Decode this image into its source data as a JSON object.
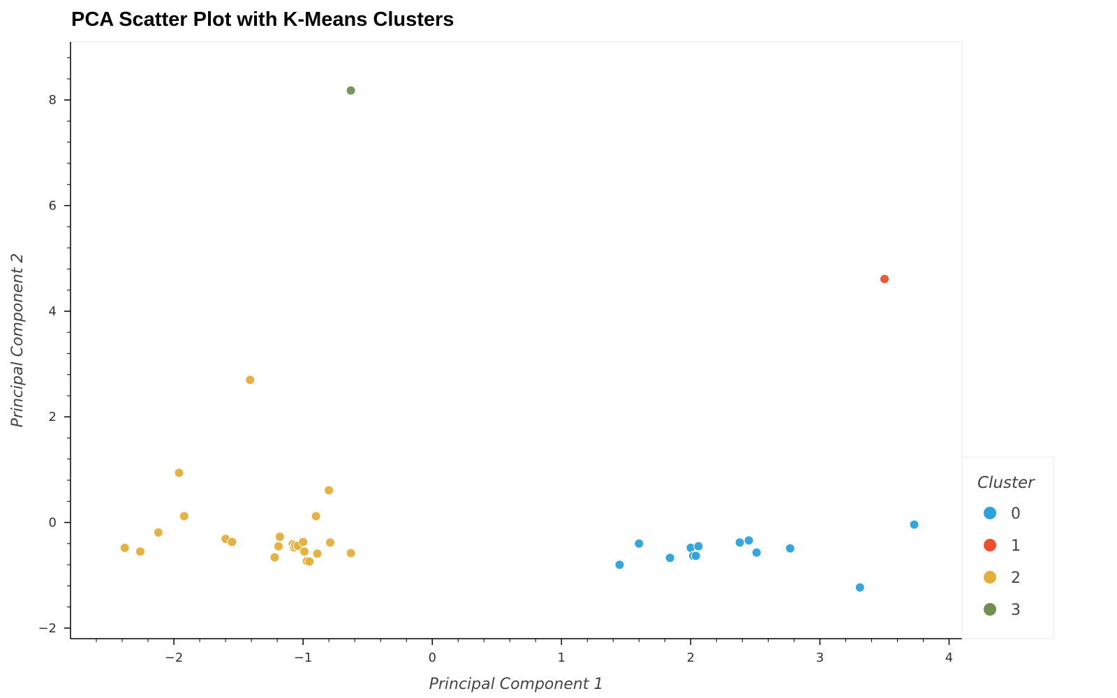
{
  "chart_data": {
    "type": "scatter",
    "title": "PCA Scatter Plot with K-Means Clusters",
    "xlabel": "Principal Component 1",
    "ylabel": "Principal Component 2",
    "xlim": [
      -2.8,
      4.1
    ],
    "ylim": [
      -2.2,
      9.1
    ],
    "xticks": [
      -2,
      -1,
      0,
      1,
      2,
      3,
      4
    ],
    "yticks": [
      -2,
      0,
      2,
      4,
      6,
      8
    ],
    "xtick_labels": [
      "−2",
      "−1",
      "0",
      "1",
      "2",
      "3",
      "4"
    ],
    "ytick_labels": [
      "−2",
      "0",
      "2",
      "4",
      "6",
      "8"
    ],
    "grid": false,
    "legend": {
      "title": "Cluster",
      "placement": "right"
    },
    "series": [
      {
        "name": "0",
        "color": "#2ca1db",
        "x": [
          1.45,
          1.6,
          1.84,
          2.0,
          2.02,
          2.04,
          2.06,
          2.38,
          2.45,
          2.51,
          2.77,
          3.31,
          3.73
        ],
        "y": [
          -0.8,
          -0.4,
          -0.67,
          -0.48,
          -0.63,
          -0.63,
          -0.45,
          -0.38,
          -0.34,
          -0.57,
          -0.49,
          -1.23,
          -0.04
        ]
      },
      {
        "name": "1",
        "color": "#f24d2c",
        "x": [
          3.5
        ],
        "y": [
          4.61
        ]
      },
      {
        "name": "2",
        "color": "#e5ae38",
        "x": [
          -2.38,
          -2.26,
          -2.12,
          -1.96,
          -1.92,
          -1.6,
          -1.55,
          -1.41,
          -1.22,
          -1.19,
          -1.18,
          -1.08,
          -1.07,
          -1.06,
          -1.04,
          -1.0,
          -0.99,
          -0.97,
          -0.95,
          -0.9,
          -0.89,
          -0.8,
          -0.79,
          -0.63
        ],
        "y": [
          -0.48,
          -0.55,
          -0.19,
          0.94,
          0.12,
          -0.31,
          -0.37,
          2.7,
          -0.66,
          -0.45,
          -0.27,
          -0.41,
          -0.47,
          -0.43,
          -0.44,
          -0.37,
          -0.55,
          -0.73,
          -0.74,
          0.12,
          -0.59,
          0.61,
          -0.38,
          -0.58
        ]
      },
      {
        "name": "3",
        "color": "#6d904f",
        "x": [
          -0.63
        ],
        "y": [
          8.18
        ]
      }
    ]
  }
}
